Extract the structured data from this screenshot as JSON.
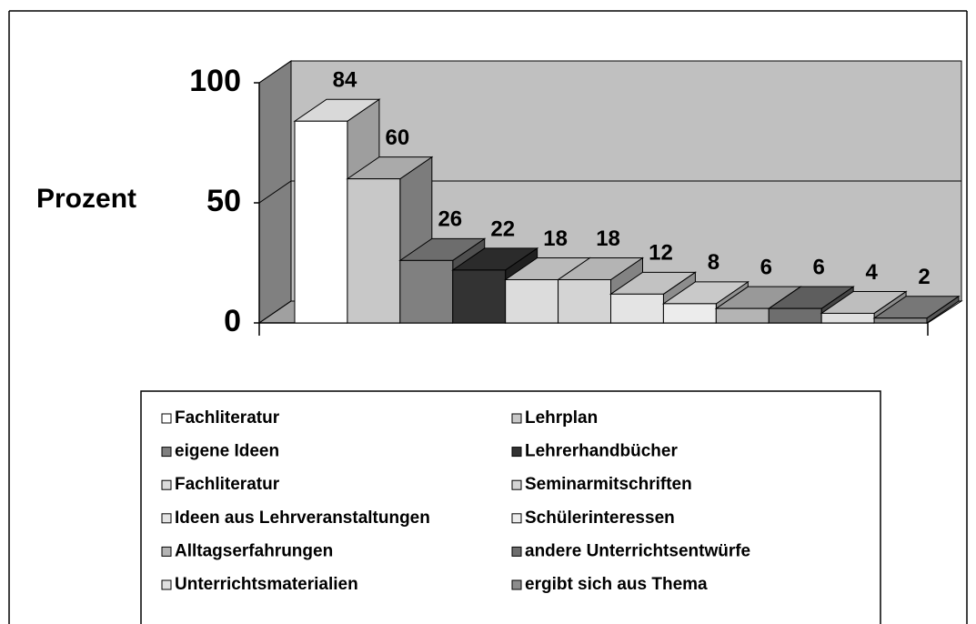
{
  "chart_data": {
    "type": "bar",
    "y_label": "Prozent",
    "ylim": [
      0,
      100
    ],
    "yticks": [
      0,
      50,
      100
    ],
    "grid": true,
    "series": [
      {
        "name": "Fachliteratur",
        "color": "#ffffff",
        "values": [
          84
        ]
      },
      {
        "name": "Lehrplan",
        "color": "#c8c8c8",
        "values": [
          60
        ]
      },
      {
        "name": "eigene Ideen",
        "color": "#808080",
        "values": [
          26
        ]
      },
      {
        "name": "Lehrerhandbücher",
        "color": "#333333",
        "values": [
          22
        ]
      },
      {
        "name": "Fachliteratur",
        "color": "#dcdcdc",
        "values": [
          18
        ]
      },
      {
        "name": "Seminarmitschriften",
        "color": "#d4d4d4",
        "values": [
          18
        ]
      },
      {
        "name": "Ideen aus Lehrveranstaltungen",
        "color": "#e4e4e4",
        "values": [
          12
        ]
      },
      {
        "name": "Schülerinteressen",
        "color": "#ececec",
        "values": [
          8
        ]
      },
      {
        "name": "Alltagserfahrungen",
        "color": "#b4b4b4",
        "values": [
          6
        ]
      },
      {
        "name": "andere Unterrichtsentwürfe",
        "color": "#6e6e6e",
        "values": [
          6
        ]
      },
      {
        "name": "Unterrichtsmaterialien",
        "color": "#e0e0e0",
        "values": [
          4
        ]
      },
      {
        "name": "ergibt sich aus Thema",
        "color": "#8c8c8c",
        "values": [
          2
        ]
      }
    ]
  }
}
